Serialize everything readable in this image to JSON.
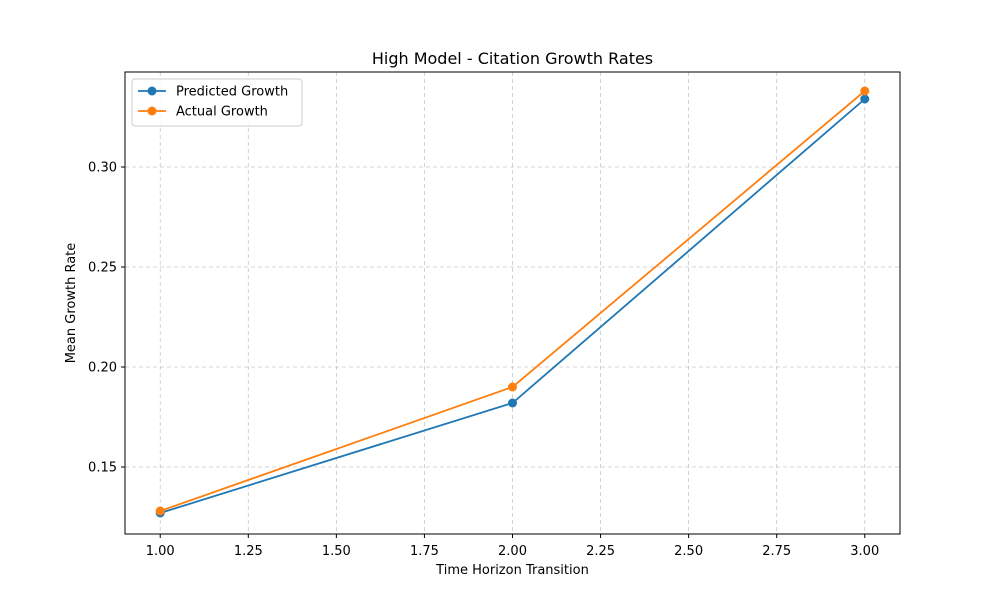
{
  "chart_data": {
    "type": "line",
    "title": "High Model - Citation Growth Rates",
    "xlabel": "Time Horizon Transition",
    "ylabel": "Mean Growth Rate",
    "x": [
      1.0,
      2.0,
      3.0
    ],
    "xlim": [
      0.9,
      3.1
    ],
    "ylim": [
      0.1165,
      0.3475
    ],
    "xticks": [
      "1.00",
      "1.25",
      "1.50",
      "1.75",
      "2.00",
      "2.25",
      "2.50",
      "2.75",
      "3.00"
    ],
    "xtick_values": [
      1.0,
      1.25,
      1.5,
      1.75,
      2.0,
      2.25,
      2.5,
      2.75,
      3.0
    ],
    "yticks": [
      "0.15",
      "0.20",
      "0.25",
      "0.30"
    ],
    "ytick_values": [
      0.15,
      0.2,
      0.25,
      0.3
    ],
    "grid": true,
    "legend_position": "top-left",
    "series": [
      {
        "name": "Predicted Growth",
        "color": "#1f77b4",
        "values": [
          0.127,
          0.182,
          0.334
        ]
      },
      {
        "name": "Actual Growth",
        "color": "#ff7f0e",
        "values": [
          0.128,
          0.19,
          0.338
        ]
      }
    ]
  }
}
